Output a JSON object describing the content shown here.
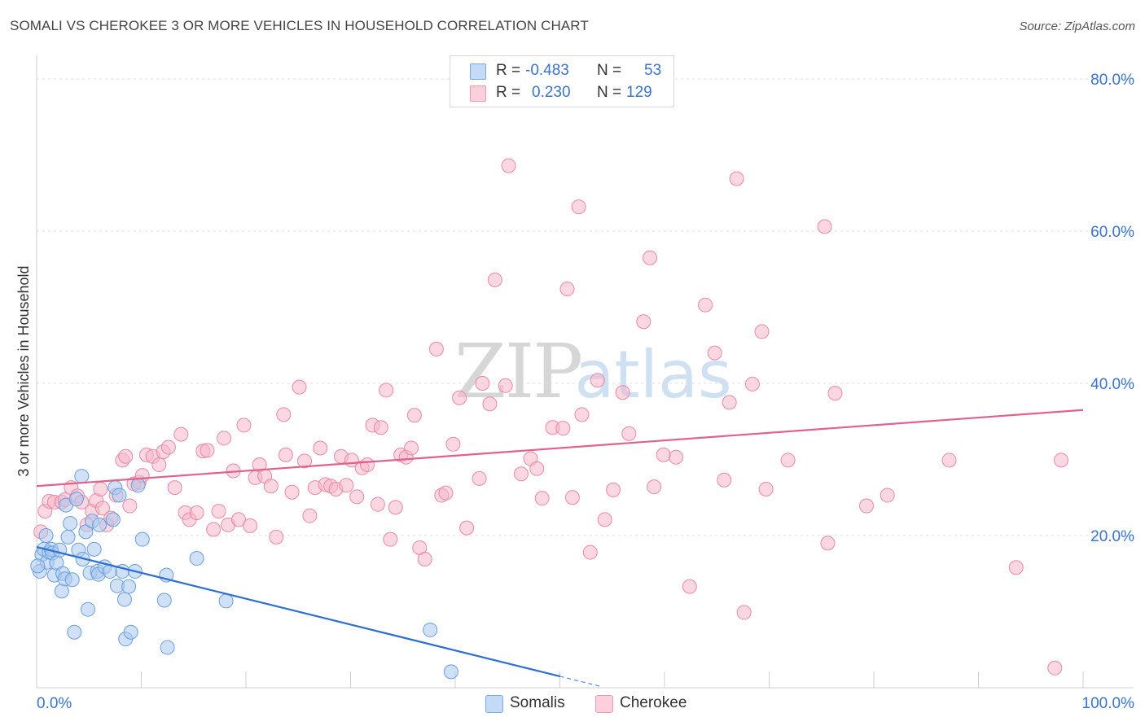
{
  "title": "SOMALI VS CHEROKEE 3 OR MORE VEHICLES IN HOUSEHOLD CORRELATION CHART",
  "source": "Source: ZipAtlas.com",
  "watermark": {
    "zip": "ZIP",
    "atlas": "atlas"
  },
  "legend": {
    "rows": [
      {
        "r_label": "R =",
        "r_value": "-0.483",
        "n_label": "N =",
        "n_value": "53",
        "color": "#a9c8f0"
      },
      {
        "r_label": "R =",
        "r_value": "0.230",
        "n_label": "N =",
        "n_value": "129",
        "color": "#f6b6c8"
      }
    ]
  },
  "bottom_legend": [
    {
      "label": "Somalis",
      "color": "#a9c8f0"
    },
    {
      "label": "Cherokee",
      "color": "#f6b6c8"
    }
  ],
  "chart_data": {
    "type": "scatter",
    "title": "SOMALI VS CHEROKEE 3 OR MORE VEHICLES IN HOUSEHOLD CORRELATION CHART",
    "xlabel": "",
    "ylabel": "3 or more Vehicles in Household",
    "xlim": [
      0,
      100
    ],
    "ylim": [
      0,
      80
    ],
    "x_tick_labels": [
      "0.0%",
      "100.0%"
    ],
    "y_tick_values": [
      20,
      40,
      60,
      80
    ],
    "y_tick_labels": [
      "20.0%",
      "40.0%",
      "60.0%",
      "80.0%"
    ],
    "grid": true,
    "legend_position": "top-center",
    "series": [
      {
        "name": "Somalis",
        "color": "#a9c8f0",
        "stroke": "#6a9fdc",
        "trend_color": "#2e6fd0",
        "r": -0.483,
        "n": 53,
        "trend": {
          "x0": 0,
          "y0": 18.5,
          "x1": 50,
          "y1": 1.5,
          "dash_to_x": 54
        },
        "points": [
          [
            0.3,
            15.3
          ],
          [
            0.5,
            17.5
          ],
          [
            0.7,
            18.2
          ],
          [
            0.9,
            20.0
          ],
          [
            1.0,
            16.5
          ],
          [
            1.2,
            17.8
          ],
          [
            1.4,
            18.2
          ],
          [
            1.5,
            17.7
          ],
          [
            1.7,
            14.8
          ],
          [
            1.9,
            16.4
          ],
          [
            2.2,
            18.1
          ],
          [
            2.4,
            12.7
          ],
          [
            2.5,
            15.0
          ],
          [
            2.7,
            14.3
          ],
          [
            2.8,
            24.0
          ],
          [
            3.0,
            19.8
          ],
          [
            3.2,
            21.6
          ],
          [
            3.4,
            14.2
          ],
          [
            3.6,
            7.3
          ],
          [
            3.8,
            24.8
          ],
          [
            4.0,
            18.1
          ],
          [
            4.3,
            27.8
          ],
          [
            4.4,
            16.9
          ],
          [
            4.7,
            20.5
          ],
          [
            4.9,
            10.3
          ],
          [
            5.1,
            15.1
          ],
          [
            5.3,
            21.9
          ],
          [
            5.5,
            18.2
          ],
          [
            5.8,
            15.3
          ],
          [
            5.9,
            14.9
          ],
          [
            6.0,
            21.4
          ],
          [
            6.5,
            15.9
          ],
          [
            7.0,
            15.3
          ],
          [
            7.3,
            22.1
          ],
          [
            7.5,
            26.3
          ],
          [
            7.7,
            13.4
          ],
          [
            7.9,
            25.3
          ],
          [
            8.2,
            15.3
          ],
          [
            8.4,
            11.6
          ],
          [
            8.5,
            6.4
          ],
          [
            8.8,
            13.3
          ],
          [
            9.0,
            7.3
          ],
          [
            9.4,
            15.3
          ],
          [
            9.7,
            26.6
          ],
          [
            10.1,
            19.5
          ],
          [
            12.2,
            11.5
          ],
          [
            12.4,
            14.8
          ],
          [
            12.5,
            5.3
          ],
          [
            15.3,
            17.0
          ],
          [
            18.1,
            11.4
          ],
          [
            37.6,
            7.6
          ],
          [
            39.6,
            2.1
          ],
          [
            0.1,
            16.0
          ]
        ]
      },
      {
        "name": "Cherokee",
        "color": "#f6b6c8",
        "stroke": "#e88aa6",
        "trend_color": "#e0628c",
        "r": 0.23,
        "n": 129,
        "trend": {
          "x0": 0,
          "y0": 26.5,
          "x1": 100,
          "y1": 36.5
        },
        "points": [
          [
            0.4,
            20.5
          ],
          [
            0.8,
            23.2
          ],
          [
            1.2,
            24.5
          ],
          [
            1.7,
            24.4
          ],
          [
            2.4,
            24.4
          ],
          [
            2.7,
            24.7
          ],
          [
            3.3,
            26.3
          ],
          [
            3.9,
            25.2
          ],
          [
            4.3,
            24.4
          ],
          [
            4.8,
            21.4
          ],
          [
            5.3,
            23.2
          ],
          [
            5.7,
            24.6
          ],
          [
            6.1,
            26.1
          ],
          [
            6.3,
            23.6
          ],
          [
            6.7,
            21.4
          ],
          [
            7.1,
            22.3
          ],
          [
            7.6,
            25.3
          ],
          [
            8.2,
            29.9
          ],
          [
            8.5,
            30.4
          ],
          [
            8.9,
            23.9
          ],
          [
            9.3,
            26.8
          ],
          [
            9.8,
            27.0
          ],
          [
            10.1,
            27.9
          ],
          [
            10.5,
            30.6
          ],
          [
            11.1,
            30.4
          ],
          [
            11.7,
            29.3
          ],
          [
            12.1,
            31.0
          ],
          [
            12.6,
            31.6
          ],
          [
            13.2,
            26.3
          ],
          [
            13.8,
            33.3
          ],
          [
            14.2,
            23.0
          ],
          [
            14.6,
            22.1
          ],
          [
            15.3,
            23.0
          ],
          [
            15.9,
            31.1
          ],
          [
            16.3,
            31.2
          ],
          [
            16.9,
            20.8
          ],
          [
            17.4,
            23.2
          ],
          [
            17.9,
            32.8
          ],
          [
            18.3,
            21.4
          ],
          [
            18.8,
            28.5
          ],
          [
            19.3,
            22.1
          ],
          [
            19.8,
            34.5
          ],
          [
            20.4,
            21.3
          ],
          [
            20.9,
            27.6
          ],
          [
            21.3,
            29.3
          ],
          [
            21.8,
            27.8
          ],
          [
            22.4,
            26.5
          ],
          [
            22.9,
            19.8
          ],
          [
            23.6,
            35.9
          ],
          [
            23.8,
            30.6
          ],
          [
            24.4,
            25.7
          ],
          [
            25.1,
            39.5
          ],
          [
            25.6,
            29.8
          ],
          [
            26.1,
            22.6
          ],
          [
            26.6,
            26.3
          ],
          [
            27.1,
            31.5
          ],
          [
            27.6,
            26.7
          ],
          [
            28.1,
            26.5
          ],
          [
            28.6,
            26.1
          ],
          [
            29.1,
            30.4
          ],
          [
            29.6,
            26.6
          ],
          [
            30.1,
            29.9
          ],
          [
            30.6,
            25.1
          ],
          [
            31.1,
            28.9
          ],
          [
            31.6,
            29.3
          ],
          [
            32.1,
            34.5
          ],
          [
            32.6,
            24.1
          ],
          [
            32.9,
            34.2
          ],
          [
            33.4,
            39.1
          ],
          [
            33.8,
            19.5
          ],
          [
            34.3,
            23.7
          ],
          [
            34.8,
            30.6
          ],
          [
            35.3,
            30.3
          ],
          [
            35.8,
            31.5
          ],
          [
            36.1,
            35.8
          ],
          [
            36.6,
            18.4
          ],
          [
            37.1,
            16.9
          ],
          [
            38.2,
            44.5
          ],
          [
            38.7,
            25.3
          ],
          [
            39.1,
            25.6
          ],
          [
            39.8,
            32.0
          ],
          [
            40.4,
            38.1
          ],
          [
            41.1,
            21.0
          ],
          [
            42.3,
            27.5
          ],
          [
            42.6,
            40.0
          ],
          [
            43.3,
            37.3
          ],
          [
            43.8,
            53.6
          ],
          [
            44.8,
            39.7
          ],
          [
            45.1,
            68.6
          ],
          [
            46.3,
            28.1
          ],
          [
            47.2,
            30.1
          ],
          [
            47.8,
            28.8
          ],
          [
            48.3,
            24.9
          ],
          [
            49.3,
            34.2
          ],
          [
            50.3,
            34.1
          ],
          [
            50.7,
            52.4
          ],
          [
            51.2,
            25.0
          ],
          [
            51.8,
            63.2
          ],
          [
            52.1,
            35.9
          ],
          [
            52.9,
            17.8
          ],
          [
            53.6,
            40.4
          ],
          [
            54.3,
            22.1
          ],
          [
            55.1,
            26.0
          ],
          [
            56.0,
            38.8
          ],
          [
            56.6,
            33.4
          ],
          [
            58.0,
            48.1
          ],
          [
            58.6,
            56.5
          ],
          [
            59.0,
            26.4
          ],
          [
            59.9,
            30.6
          ],
          [
            61.1,
            30.3
          ],
          [
            62.4,
            13.3
          ],
          [
            63.9,
            50.3
          ],
          [
            64.8,
            44.0
          ],
          [
            65.7,
            27.3
          ],
          [
            66.2,
            37.5
          ],
          [
            66.9,
            66.9
          ],
          [
            67.6,
            9.9
          ],
          [
            68.4,
            39.9
          ],
          [
            69.3,
            46.8
          ],
          [
            69.7,
            26.1
          ],
          [
            71.8,
            29.9
          ],
          [
            75.3,
            60.6
          ],
          [
            75.6,
            19.0
          ],
          [
            76.3,
            38.7
          ],
          [
            79.3,
            23.9
          ],
          [
            81.3,
            25.3
          ],
          [
            87.2,
            29.9
          ],
          [
            93.6,
            15.8
          ],
          [
            97.3,
            2.6
          ],
          [
            97.9,
            29.9
          ]
        ]
      }
    ]
  }
}
